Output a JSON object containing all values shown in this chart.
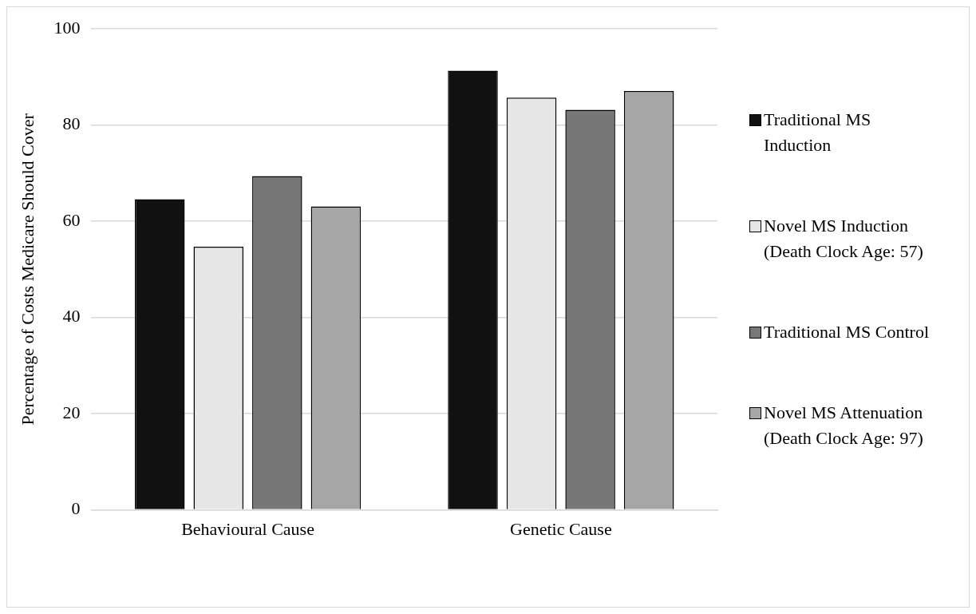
{
  "chart_data": {
    "type": "bar",
    "ylabel": "Percentage of Costs Medicare Should Cover",
    "categories": [
      "Behavioural Cause",
      "Genetic Cause"
    ],
    "series": [
      {
        "name": "Traditional MS Induction",
        "color": "#111111",
        "values": [
          64.6,
          91.3
        ]
      },
      {
        "name": "Novel MS Induction (Death Clock Age: 57)",
        "color": "#e6e6e6",
        "values": [
          54.7,
          85.7
        ]
      },
      {
        "name": "Traditional MS Control",
        "color": "#777777",
        "values": [
          69.4,
          83.2
        ]
      },
      {
        "name": "Novel MS Attenuation (Death Clock Age: 97)",
        "color": "#a6a6a6",
        "values": [
          63.1,
          87.1
        ]
      }
    ],
    "ylim": [
      0,
      100
    ],
    "yticks": [
      0,
      20,
      40,
      60,
      80,
      100
    ],
    "grid": "y",
    "legend": "right"
  }
}
